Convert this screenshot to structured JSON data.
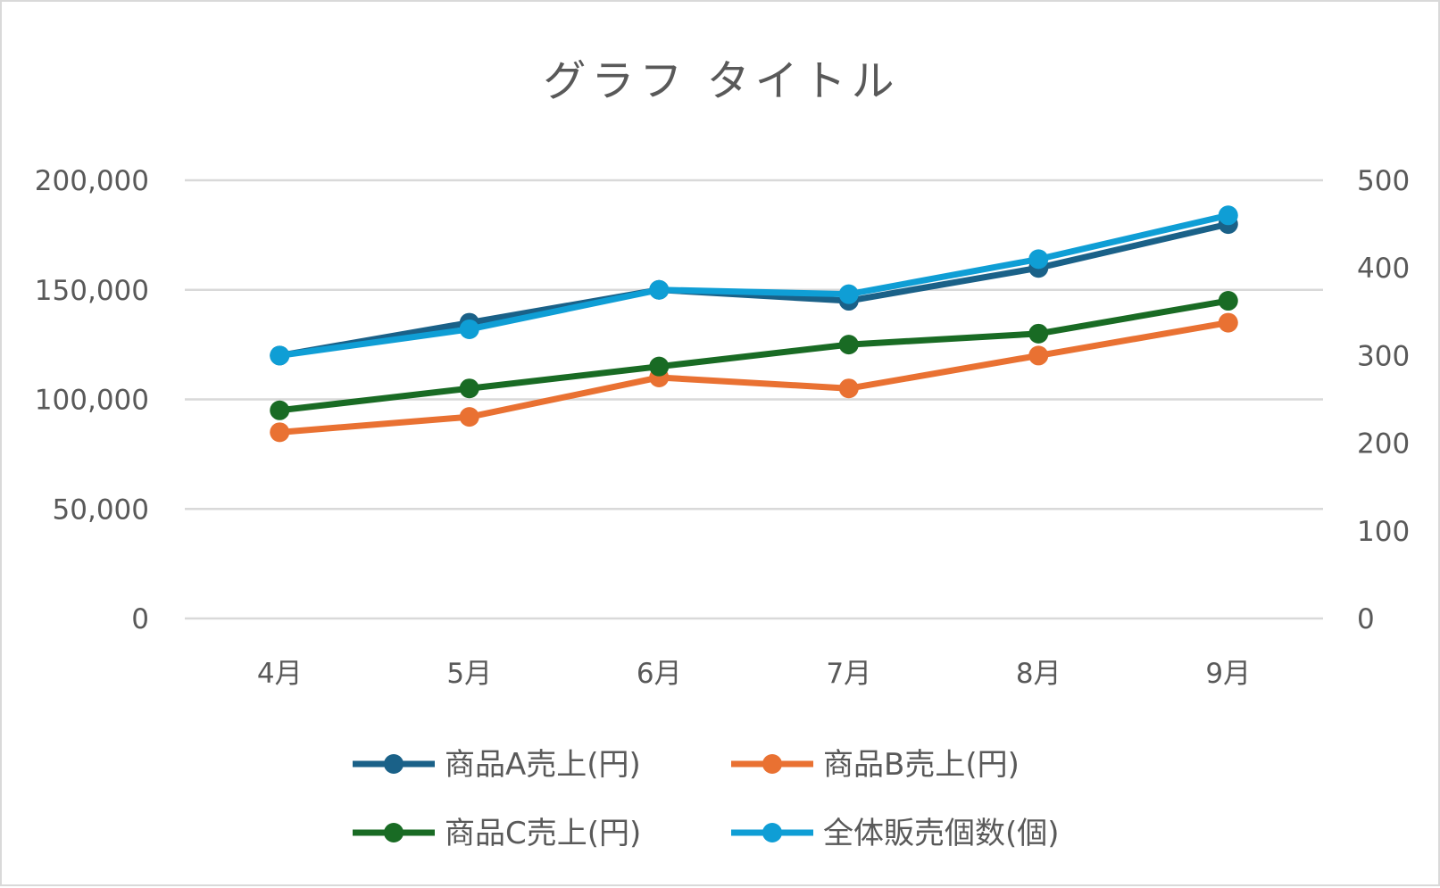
{
  "chart_data": {
    "type": "line",
    "title": "グラフ タイトル",
    "categories": [
      "4月",
      "5月",
      "6月",
      "7月",
      "8月",
      "9月"
    ],
    "y_left": {
      "ylim": [
        0,
        200000
      ],
      "ticks": [
        "0",
        "50,000",
        "100,000",
        "150,000",
        "200,000"
      ],
      "tick_values": [
        0,
        50000,
        100000,
        150000,
        200000
      ]
    },
    "y_right": {
      "ylim": [
        0,
        500
      ],
      "ticks": [
        "0",
        "100",
        "200",
        "300",
        "400",
        "500"
      ],
      "tick_values": [
        0,
        100,
        200,
        300,
        400,
        500
      ]
    },
    "grid": true,
    "legend_position": "bottom",
    "series": [
      {
        "name": "商品A売上(円)",
        "axis": "left",
        "color": "#1a6188",
        "values": [
          120000,
          135000,
          150000,
          145000,
          160000,
          180000
        ]
      },
      {
        "name": "商品B売上(円)",
        "axis": "left",
        "color": "#e97132",
        "values": [
          85000,
          92000,
          110000,
          105000,
          120000,
          135000
        ]
      },
      {
        "name": "商品C売上(円)",
        "axis": "left",
        "color": "#196b24",
        "values": [
          95000,
          105000,
          115000,
          125000,
          130000,
          145000
        ]
      },
      {
        "name": "全体販売個数(個)",
        "axis": "right",
        "color": "#0f9ed5",
        "values": [
          300,
          330,
          375,
          370,
          410,
          460
        ]
      }
    ]
  }
}
